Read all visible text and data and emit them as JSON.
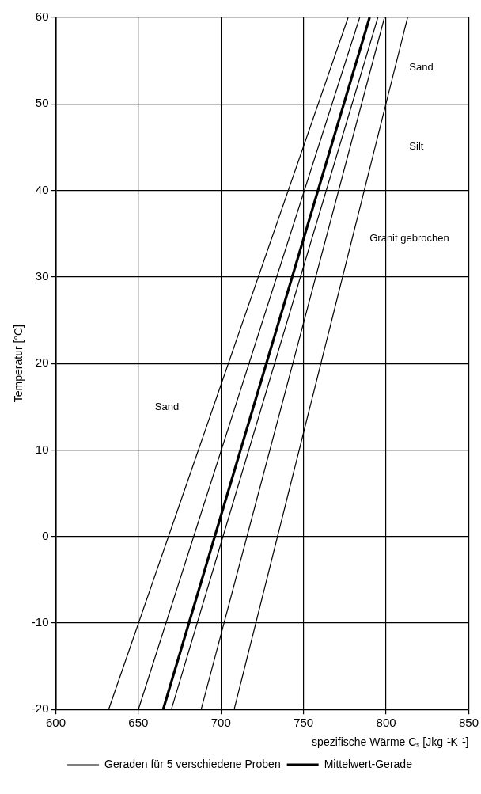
{
  "chart_data": {
    "type": "line",
    "xlabel": "spezifische Wärme Cₛ [Jkg⁻¹K⁻¹]",
    "ylabel": "Temperatur [°C]",
    "series": [
      {
        "name": "Geraden für 5 verschiedene Proben",
        "color": "#000000",
        "x": [
          632,
          777
        ],
        "values": [
          -20,
          60
        ]
      },
      {
        "color": "#000000",
        "x": [
          650,
          784
        ],
        "values": [
          -20,
          60
        ]
      },
      {
        "color": "#000000",
        "x": [
          670,
          795
        ],
        "values": [
          -20,
          60
        ]
      },
      {
        "color": "#000000",
        "x": [
          688,
          799
        ],
        "values": [
          -20,
          60
        ]
      },
      {
        "color": "#000000",
        "x": [
          708,
          813
        ],
        "values": [
          -20,
          60
        ]
      },
      {
        "name": "Mittelwert-Gerade",
        "color": "#000000",
        "x": [
          665,
          790
        ],
        "values": [
          -20,
          60
        ]
      }
    ],
    "xlim": [
      600,
      850
    ],
    "xticks": [
      600,
      650,
      700,
      750,
      800,
      850
    ],
    "ylim": [
      -20,
      60
    ],
    "yticks": [
      -20,
      -10,
      0,
      10,
      20,
      30,
      40,
      50,
      60
    ],
    "grid": true,
    "legend": "bottom",
    "marker": "none",
    "line_style": "solid",
    "annotations": [
      "Sand",
      "Silt",
      "Granit gebrochen",
      "Sand"
    ]
  }
}
